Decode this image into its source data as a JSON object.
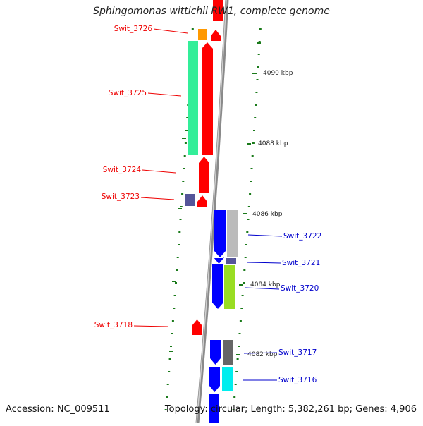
{
  "title": "Sphingomonas wittichii RW1, complete genome",
  "footer": {
    "accession": "Accession: NC_009511",
    "summary": "Topology: circular; Length: 5,382,261 bp; Genes: 4,906"
  },
  "colors": {
    "forward_label": "#ee0000",
    "reverse_label": "#0000cc",
    "tick": "#1a7a1a",
    "backbone": "#8a8a8a"
  },
  "scale": {
    "unit": "kbp",
    "labels": [
      "4090 kbp",
      "4088 kbp",
      "4086 kbp",
      "4084 kbp",
      "4082 kbp"
    ]
  },
  "genes_forward": [
    {
      "label": "Swit_3726",
      "color": "#ff0000",
      "category_color": "#ff9900"
    },
    {
      "label": "Swit_3725",
      "color": "#ff0000",
      "category_color": "#33ee99"
    },
    {
      "label": "Swit_3724",
      "color": "#ff0000"
    },
    {
      "label": "Swit_3723",
      "color": "#ff0000",
      "category_color": "#555599"
    },
    {
      "label": "Swit_3718",
      "color": "#ff0000"
    }
  ],
  "genes_reverse": [
    {
      "label": "Swit_3722",
      "color": "#0000ff",
      "category_color": "#bbbbbb"
    },
    {
      "label": "Swit_3721",
      "color": "#0000ff",
      "category_color": "#555599"
    },
    {
      "label": "Swit_3720",
      "color": "#0000ff",
      "category_color": "#99dd22"
    },
    {
      "label": "Swit_3717",
      "color": "#0000ff",
      "category_color": "#666666"
    },
    {
      "label": "Swit_3716",
      "color": "#0000ff",
      "category_color": "#00eeee"
    }
  ]
}
